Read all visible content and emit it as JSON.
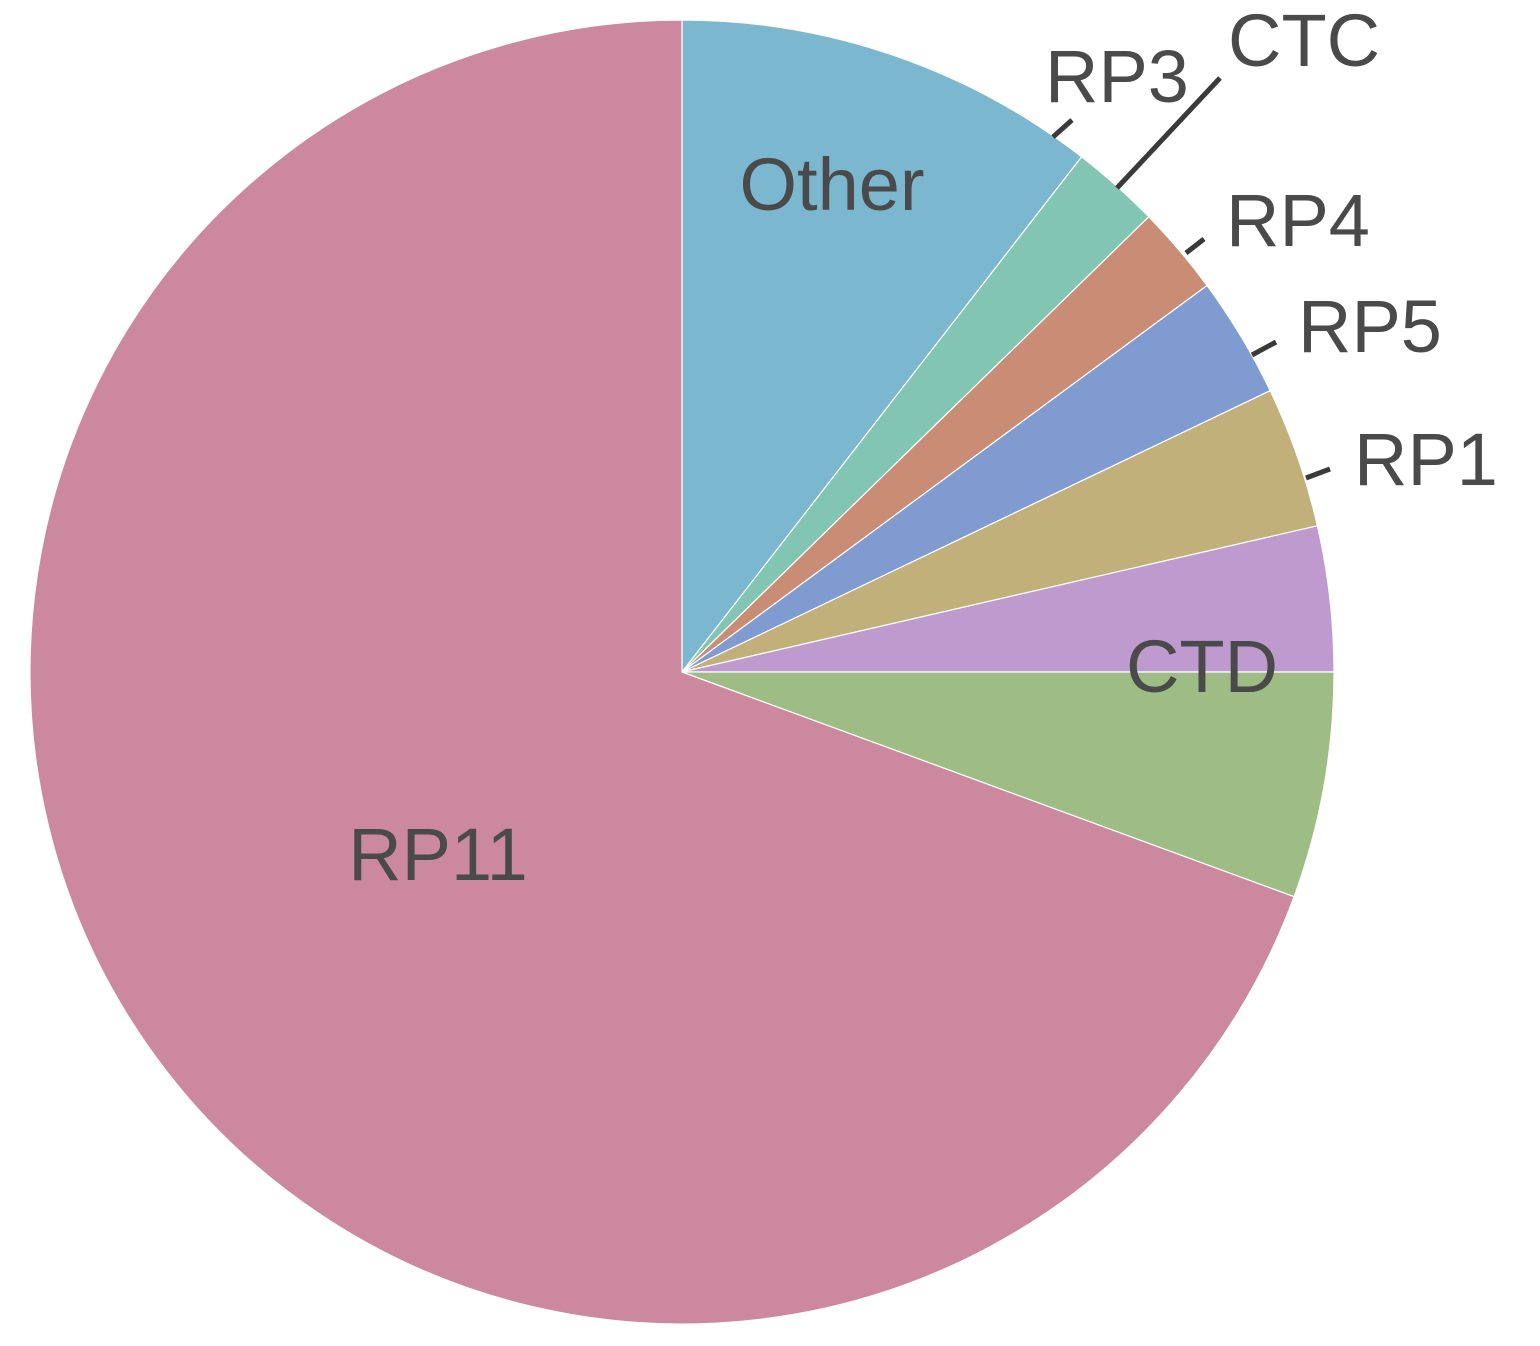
{
  "chart_data": {
    "type": "pie",
    "title": "",
    "start": "12 o'clock",
    "direction": "clockwise",
    "slices": [
      {
        "label": "Other",
        "value": 10.5,
        "color": "#7bb7cf"
      },
      {
        "label": "RP3",
        "value": 2.2,
        "color": "#82c5b3"
      },
      {
        "label": "CTC",
        "value": 2.2,
        "color": "#c98c74"
      },
      {
        "label": "RP4",
        "value": 3.0,
        "color": "#7f9bd0"
      },
      {
        "label": "RP5",
        "value": 3.5,
        "color": "#c2b07a"
      },
      {
        "label": "RP1",
        "value": 3.6,
        "color": "#bf9acf"
      },
      {
        "label": "CTD",
        "value": 5.6,
        "color": "#9dbd85"
      },
      {
        "label": "RP11",
        "value": 69.4,
        "color": "#cc889f"
      }
    ]
  }
}
